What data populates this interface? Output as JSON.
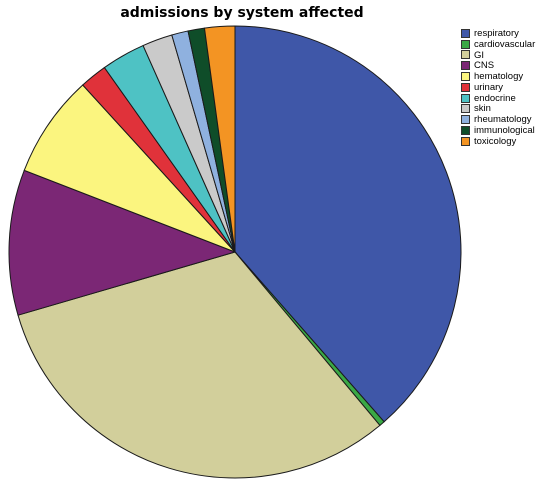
{
  "chart_data": {
    "type": "pie",
    "title": "admissions by system affected",
    "legend_position": "right",
    "start_angle_deg": 0,
    "direction": "clockwise",
    "slices": [
      {
        "label": "respiratory",
        "value": 39.3,
        "color": "#3f57a8"
      },
      {
        "label": "cardiovascular",
        "value": 0.4,
        "color": "#3aa845"
      },
      {
        "label": "GI",
        "value": 32.2,
        "color": "#d2cf9b"
      },
      {
        "label": "CNS",
        "value": 10.6,
        "color": "#7b2775"
      },
      {
        "label": "hematology",
        "value": 7.5,
        "color": "#fbf57f"
      },
      {
        "label": "urinary",
        "value": 2.0,
        "color": "#e0323a"
      },
      {
        "label": "endocrine",
        "value": 3.2,
        "color": "#4ec2c4"
      },
      {
        "label": "skin",
        "value": 2.2,
        "color": "#cacaca"
      },
      {
        "label": "rheumatology",
        "value": 1.2,
        "color": "#8fb1df"
      },
      {
        "label": "immunological",
        "value": 1.2,
        "color": "#0f4d29"
      },
      {
        "label": "toxicology",
        "value": 2.2,
        "color": "#f39423"
      }
    ]
  }
}
